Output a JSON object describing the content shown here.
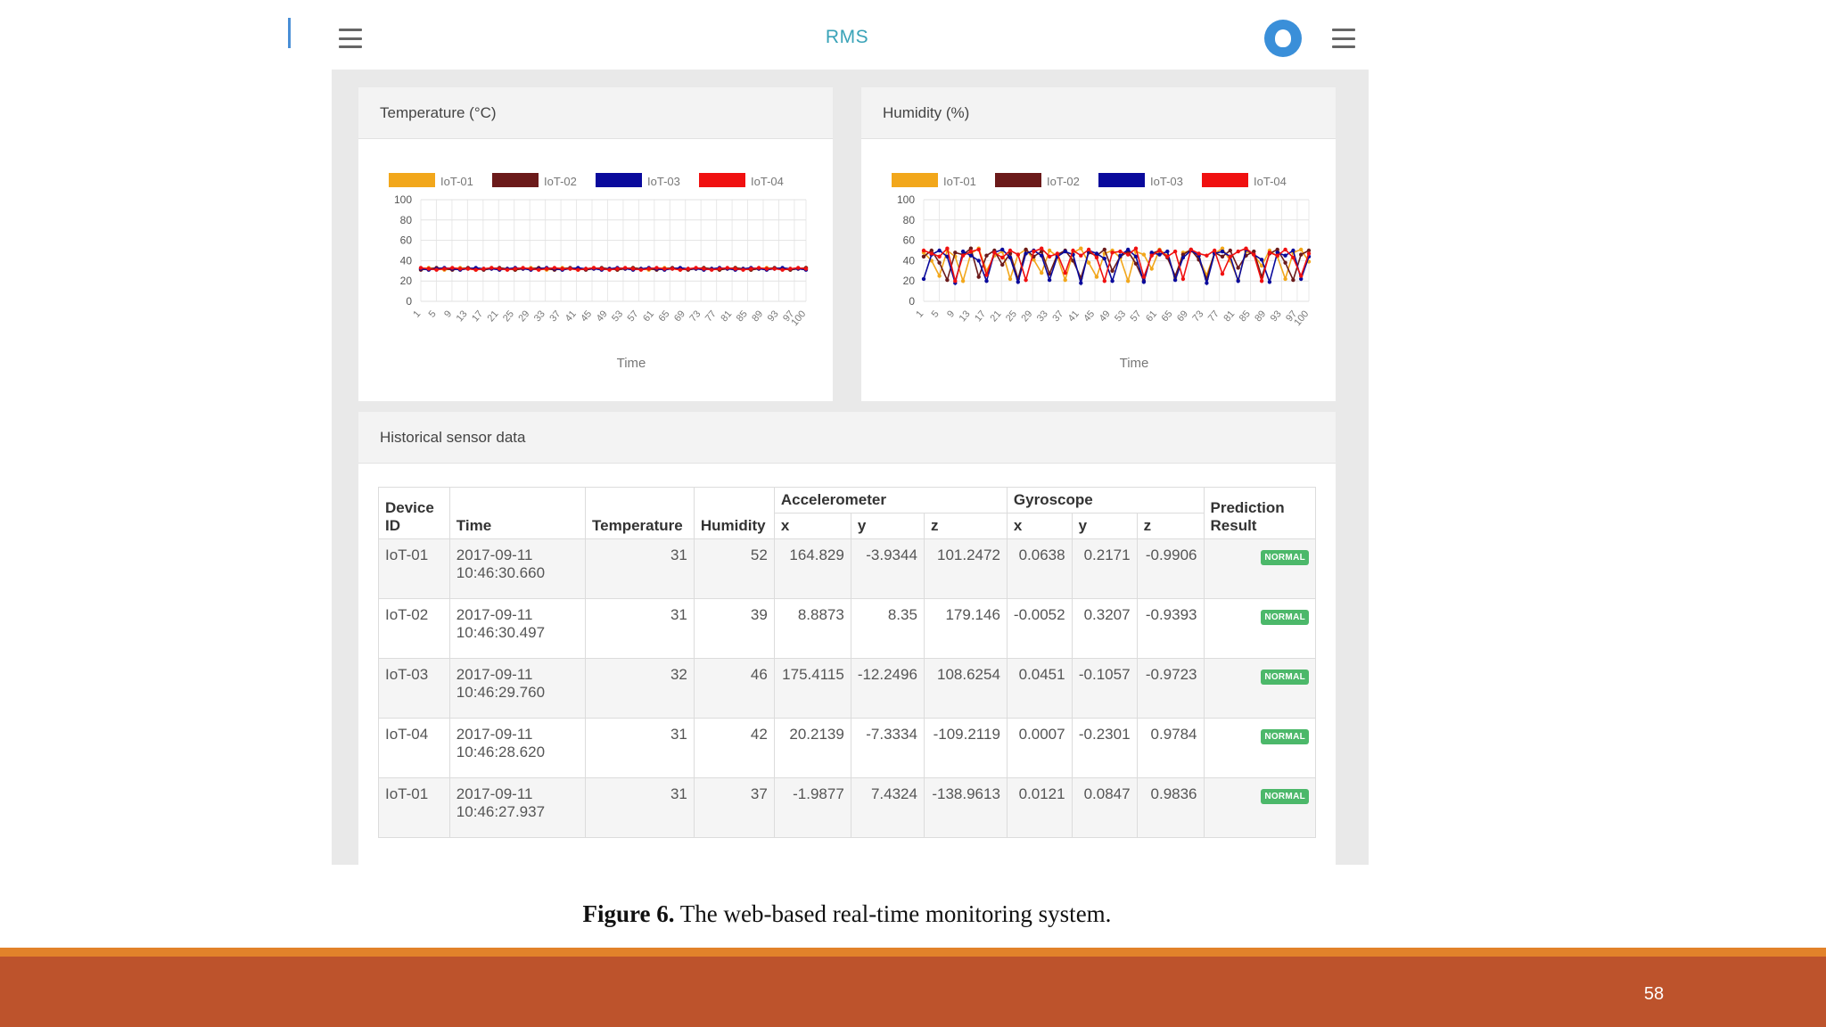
{
  "header": {
    "app_title": "RMS",
    "menu_icon": "hamburger-menu-icon",
    "brand_icon": "app-logo-icon"
  },
  "temperature_card": {
    "title": "Temperature (°C)",
    "xlabel": "Time"
  },
  "humidity_card": {
    "title": "Humidity (%)",
    "xlabel": "Time"
  },
  "chart_data": [
    {
      "type": "line",
      "title": "Temperature (°C)",
      "xlabel": "Time",
      "ylabel": "",
      "ylim": [
        0,
        100
      ],
      "yticks": [
        0,
        20,
        40,
        60,
        80,
        100
      ],
      "xticks": [
        1,
        5,
        9,
        13,
        17,
        21,
        25,
        29,
        33,
        37,
        41,
        45,
        49,
        53,
        57,
        61,
        65,
        69,
        73,
        77,
        81,
        85,
        89,
        93,
        97,
        100
      ],
      "grid": true,
      "legend": "top",
      "series": [
        {
          "name": "IoT-01",
          "color": "#f2a71b",
          "values": [
            32,
            33,
            32,
            31,
            32,
            33,
            32,
            31,
            32,
            33,
            32,
            32,
            31,
            32,
            33,
            32,
            31,
            32,
            33,
            32,
            31,
            32,
            33,
            32,
            32,
            31,
            32,
            33,
            32,
            31,
            32,
            33,
            32,
            31,
            32,
            32,
            33,
            32,
            31,
            32,
            33,
            32,
            31,
            32,
            33,
            32,
            32,
            31,
            32,
            33
          ]
        },
        {
          "name": "IoT-02",
          "color": "#6b1a1a",
          "values": [
            31,
            32,
            33,
            32,
            31,
            32,
            33,
            32,
            31,
            32,
            33,
            32,
            31,
            32,
            32,
            33,
            32,
            31,
            32,
            33,
            32,
            31,
            32,
            33,
            32,
            31,
            32,
            33,
            32,
            32,
            31,
            32,
            33,
            32,
            31,
            32,
            33,
            32,
            31,
            32,
            33,
            32,
            31,
            32,
            32,
            33,
            32,
            31,
            32,
            33
          ]
        },
        {
          "name": "IoT-03",
          "color": "#0a0a9c",
          "values": [
            32,
            31,
            32,
            33,
            32,
            31,
            32,
            33,
            32,
            32,
            31,
            32,
            33,
            32,
            31,
            32,
            33,
            32,
            31,
            32,
            33,
            32,
            32,
            31,
            32,
            33,
            32,
            31,
            32,
            33,
            32,
            31,
            32,
            33,
            32,
            32,
            31,
            32,
            33,
            32,
            31,
            32,
            33,
            32,
            31,
            32,
            33,
            32,
            32,
            31
          ]
        },
        {
          "name": "IoT-04",
          "color": "#f01010",
          "values": [
            33,
            32,
            31,
            32,
            33,
            32,
            32,
            31,
            32,
            33,
            32,
            31,
            32,
            33,
            32,
            31,
            32,
            33,
            32,
            32,
            31,
            32,
            33,
            32,
            31,
            32,
            33,
            32,
            31,
            32,
            33,
            32,
            32,
            31,
            32,
            33,
            32,
            31,
            32,
            33,
            32,
            31,
            32,
            33,
            32,
            32,
            31,
            32,
            33,
            32
          ]
        }
      ]
    },
    {
      "type": "line",
      "title": "Humidity (%)",
      "xlabel": "Time",
      "ylabel": "",
      "ylim": [
        0,
        100
      ],
      "yticks": [
        0,
        20,
        40,
        60,
        80,
        100
      ],
      "xticks": [
        1,
        5,
        9,
        13,
        17,
        21,
        25,
        29,
        33,
        37,
        41,
        45,
        49,
        53,
        57,
        61,
        65,
        69,
        73,
        77,
        81,
        85,
        89,
        93,
        97,
        100
      ],
      "grid": true,
      "legend": "top",
      "series": [
        {
          "name": "IoT-01",
          "color": "#f2a71b",
          "values": [
            48,
            40,
            25,
            50,
            44,
            20,
            47,
            52,
            30,
            45,
            49,
            22,
            46,
            51,
            41,
            28,
            50,
            44,
            21,
            48,
            52,
            38,
            24,
            47,
            50,
            43,
            20,
            49,
            46,
            32,
            51,
            45,
            23,
            48,
            50,
            42,
            26,
            47,
            52,
            40,
            21,
            49,
            46,
            35,
            50,
            44,
            22,
            48,
            51,
            39
          ]
        },
        {
          "name": "IoT-02",
          "color": "#6b1a1a",
          "values": [
            44,
            50,
            38,
            21,
            48,
            46,
            52,
            24,
            45,
            50,
            36,
            47,
            22,
            51,
            44,
            49,
            27,
            46,
            50,
            40,
            23,
            48,
            45,
            51,
            30,
            44,
            49,
            37,
            20,
            47,
            50,
            43,
            25,
            46,
            51,
            41,
            22,
            48,
            44,
            50,
            33,
            45,
            49,
            24,
            47,
            51,
            38,
            21,
            46,
            50
          ]
        },
        {
          "name": "IoT-03",
          "color": "#0a0a9c",
          "values": [
            22,
            46,
            50,
            44,
            18,
            49,
            45,
            40,
            20,
            48,
            51,
            43,
            19,
            47,
            50,
            45,
            21,
            44,
            49,
            46,
            18,
            50,
            47,
            42,
            20,
            45,
            51,
            44,
            19,
            48,
            46,
            49,
            21,
            43,
            50,
            45,
            18,
            47,
            49,
            44,
            20,
            51,
            46,
            41,
            19,
            48,
            45,
            50,
            22,
            44
          ]
        },
        {
          "name": "IoT-04",
          "color": "#f01010",
          "values": [
            50,
            47,
            44,
            52,
            20,
            45,
            49,
            51,
            26,
            48,
            43,
            50,
            46,
            21,
            49,
            52,
            44,
            47,
            28,
            50,
            45,
            51,
            43,
            20,
            48,
            49,
            46,
            52,
            24,
            45,
            50,
            44,
            49,
            22,
            51,
            47,
            45,
            50,
            27,
            44,
            49,
            52,
            46,
            20,
            48,
            45,
            51,
            43,
            25,
            47
          ]
        }
      ]
    }
  ],
  "table_card": {
    "title": "Historical sensor data",
    "headers": {
      "device_id": "Device ID",
      "time": "Time",
      "temperature": "Temperature",
      "humidity": "Humidity",
      "accelerometer": "Accelerometer",
      "gyroscope": "Gyroscope",
      "x": "x",
      "y": "y",
      "z": "z",
      "prediction": "Prediction Result"
    },
    "rows": [
      {
        "device": "IoT-01",
        "date": "2017-09-11",
        "clock": "10:46:30.660",
        "temperature": "31",
        "humidity": "52",
        "ax": "164.829",
        "ay": "-3.9344",
        "az": "101.2472",
        "gx": "0.0638",
        "gy": "0.2171",
        "gz": "-0.9906",
        "result": "NORMAL"
      },
      {
        "device": "IoT-02",
        "date": "2017-09-11",
        "clock": "10:46:30.497",
        "temperature": "31",
        "humidity": "39",
        "ax": "8.8873",
        "ay": "8.35",
        "az": "179.146",
        "gx": "-0.0052",
        "gy": "0.3207",
        "gz": "-0.9393",
        "result": "NORMAL"
      },
      {
        "device": "IoT-03",
        "date": "2017-09-11",
        "clock": "10:46:29.760",
        "temperature": "32",
        "humidity": "46",
        "ax": "175.4115",
        "ay": "-12.2496",
        "az": "108.6254",
        "gx": "0.0451",
        "gy": "-0.1057",
        "gz": "-0.9723",
        "result": "NORMAL"
      },
      {
        "device": "IoT-04",
        "date": "2017-09-11",
        "clock": "10:46:28.620",
        "temperature": "31",
        "humidity": "42",
        "ax": "20.2139",
        "ay": "-7.3334",
        "az": "-109.2119",
        "gx": "0.0007",
        "gy": "-0.2301",
        "gz": "0.9784",
        "result": "NORMAL"
      },
      {
        "device": "IoT-01",
        "date": "2017-09-11",
        "clock": "10:46:27.937",
        "temperature": "31",
        "humidity": "37",
        "ax": "-1.9877",
        "ay": "7.4324",
        "az": "-138.9613",
        "gx": "0.0121",
        "gy": "0.0847",
        "gz": "0.9836",
        "result": "NORMAL"
      }
    ]
  },
  "caption": {
    "label": "Figure 6.",
    "text": " The web-based real-time monitoring system."
  },
  "footer": {
    "page_number": "58"
  },
  "colors": {
    "accent_title": "#3aa3b8",
    "footer_orange": "#e2822a",
    "footer_brown": "#bd532c",
    "badge_green": "#4cb86a"
  }
}
